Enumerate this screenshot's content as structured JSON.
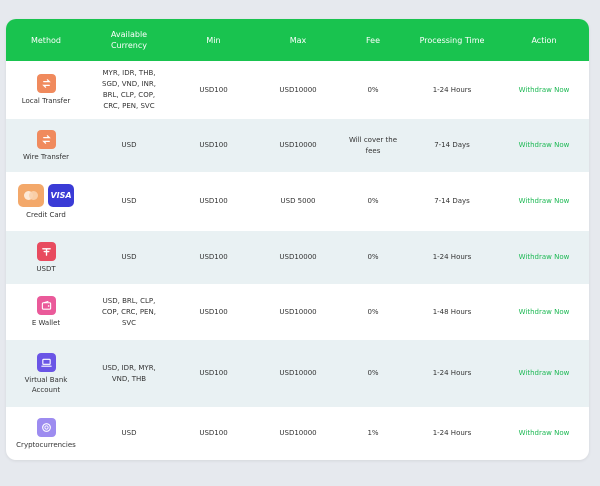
{
  "header": {
    "method": "Method",
    "currency_line1": "Available",
    "currency_line2": "Currency",
    "min": "Min",
    "max": "Max",
    "fee": "Fee",
    "processing": "Processing Time",
    "action": "Action"
  },
  "rows": [
    {
      "method": "Local Transfer",
      "icon": "exchange-icon",
      "icon_color": "#f08a5d",
      "currency_lines": [
        "MYR, IDR, THB,",
        "SGD, VND, INR,",
        "BRL, CLP, COP,",
        "CRC, PEN, SVC"
      ],
      "min": "USD100",
      "max": "USD10000",
      "fee": "0%",
      "processing": "1-24 Hours",
      "action": "Withdraw Now"
    },
    {
      "method": "Wire Transfer",
      "icon": "exchange-icon",
      "icon_color": "#f08a5d",
      "currency_lines": [
        "USD"
      ],
      "min": "USD100",
      "max": "USD10000",
      "fee": "Will cover the fees",
      "processing": "7-14 Days",
      "action": "Withdraw Now"
    },
    {
      "method": "Credit Card",
      "icon": "mastercard-visa-icons",
      "visa_text": "VISA",
      "currency_lines": [
        "USD"
      ],
      "min": "USD100",
      "max": "USD 5000",
      "fee": "0%",
      "processing": "7-14 Days",
      "action": "Withdraw Now"
    },
    {
      "method": "USDT",
      "icon": "tether-icon",
      "icon_color": "#e84b5f",
      "currency_lines": [
        "USD"
      ],
      "min": "USD100",
      "max": "USD10000",
      "fee": "0%",
      "processing": "1-24 Hours",
      "action": "Withdraw Now"
    },
    {
      "method": "E Wallet",
      "icon": "wallet-icon",
      "icon_color": "#ea5a9a",
      "currency_lines": [
        "USD, BRL, CLP,",
        "COP, CRC, PEN,",
        "SVC"
      ],
      "min": "USD100",
      "max": "USD10000",
      "fee": "0%",
      "processing": "1-48 Hours",
      "action": "Withdraw Now"
    },
    {
      "method_lines": [
        "Virtual Bank",
        "Account"
      ],
      "icon": "laptop-bank-icon",
      "icon_color": "#6a55e6",
      "currency_lines": [
        "USD, IDR, MYR,",
        "VND, THB"
      ],
      "min": "USD100",
      "max": "USD10000",
      "fee": "0%",
      "processing": "1-24 Hours",
      "action": "Withdraw Now"
    },
    {
      "method": "Cryptocurrencies",
      "icon": "crypto-coin-icon",
      "icon_color": "#9d8cf0",
      "currency_lines": [
        "USD"
      ],
      "min": "USD100",
      "max": "USD10000",
      "fee": "1%",
      "processing": "1-24 Hours",
      "action": "Withdraw Now"
    }
  ]
}
